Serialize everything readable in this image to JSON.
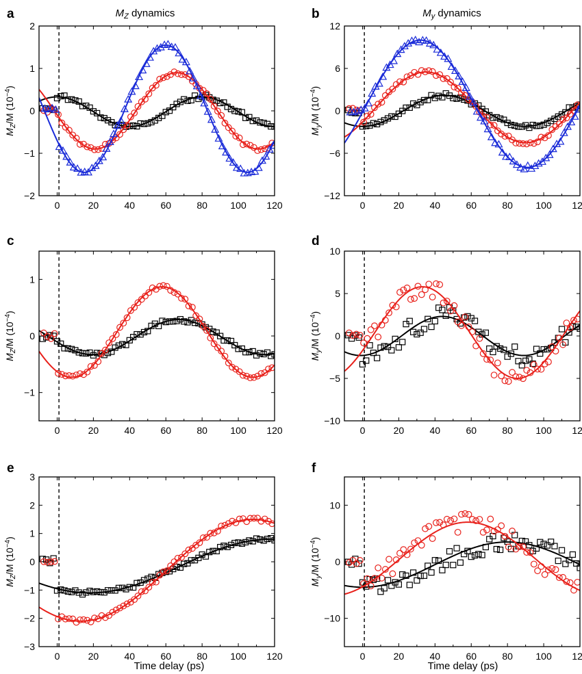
{
  "figure": {
    "column_titles": [
      {
        "symbol": "M",
        "subscript": "Z",
        "rest": " dynamics"
      },
      {
        "symbol": "M",
        "subscript": "y",
        "rest": " dynamics"
      }
    ],
    "x_axis_label": "Time delay (ps)"
  },
  "colors": {
    "black": "#000000",
    "red": "#e8201a",
    "blue": "#1a2bd8"
  },
  "chart_data": [
    {
      "panel": "a",
      "type": "scatter",
      "column": 0,
      "row": 0,
      "ylabel": {
        "main": "M",
        "sub": "Z",
        "rest": "/M (10",
        "exp": "−4",
        "close": ")"
      },
      "xlim": [
        -10,
        120
      ],
      "ylim": [
        -2,
        2
      ],
      "xticks": [
        0,
        20,
        40,
        60,
        80,
        100,
        120
      ],
      "yticks": [
        -2,
        -1,
        0,
        1,
        2
      ],
      "dashed_x": 1,
      "series": [
        {
          "color": "black",
          "marker": "square",
          "fit": {
            "kind": "cosine",
            "offset": -0.02,
            "amp": 0.35,
            "period": 80,
            "peak": 80,
            "t0": -10
          }
        },
        {
          "color": "red",
          "marker": "circle",
          "fit": {
            "kind": "cosine",
            "offset": 0.0,
            "amp": 0.9,
            "period": 90,
            "peak": 66,
            "t0": -10
          }
        },
        {
          "color": "blue",
          "marker": "triangle",
          "fit": {
            "kind": "cosine",
            "offset": 0.05,
            "amp": 1.5,
            "period": 90,
            "peak": 60,
            "t0": -10
          }
        }
      ]
    },
    {
      "panel": "b",
      "type": "scatter",
      "column": 1,
      "row": 0,
      "ylabel": {
        "main": "M",
        "sub": "y",
        "rest": "/M (10",
        "exp": "−4",
        "close": ")"
      },
      "xlim": [
        -10,
        120
      ],
      "ylim": [
        -12,
        12
      ],
      "xticks": [
        0,
        20,
        40,
        60,
        80,
        100,
        120
      ],
      "yticks": [
        -12,
        -6,
        0,
        6,
        12
      ],
      "dashed_x": 1,
      "series": [
        {
          "color": "black",
          "marker": "square",
          "fit": {
            "kind": "cosine",
            "offset": 0.0,
            "amp": 2.2,
            "period": 90,
            "peak": 45,
            "t0": -10
          }
        },
        {
          "color": "red",
          "marker": "circle",
          "fit": {
            "kind": "cosine",
            "offset": 0.5,
            "amp": 5.0,
            "period": 110,
            "peak": 35,
            "t0": -10
          }
        },
        {
          "color": "blue",
          "marker": "triangle",
          "fit": {
            "kind": "cosine",
            "offset": 1.0,
            "amp": 9.0,
            "period": 118,
            "peak": 32,
            "t0": -10
          }
        }
      ]
    },
    {
      "panel": "c",
      "type": "scatter",
      "column": 0,
      "row": 1,
      "ylabel": {
        "main": "M",
        "sub": "Z",
        "rest": "/M (10",
        "exp": "−4",
        "close": ")"
      },
      "xlim": [
        -10,
        120
      ],
      "ylim": [
        -1.5,
        1.5
      ],
      "xticks": [
        0,
        20,
        40,
        60,
        80,
        100,
        120
      ],
      "yticks": [
        -1,
        0,
        1
      ],
      "dashed_x": 1,
      "series": [
        {
          "color": "black",
          "marker": "square",
          "fit": {
            "kind": "cosine",
            "offset": -0.02,
            "amp": 0.31,
            "period": 95,
            "peak": 67,
            "t0": -10
          }
        },
        {
          "color": "red",
          "marker": "circle",
          "fit": {
            "kind": "cosine",
            "offset": 0.07,
            "amp": 0.8,
            "period": 100,
            "peak": 58,
            "t0": -10
          }
        }
      ]
    },
    {
      "panel": "d",
      "type": "scatter",
      "column": 1,
      "row": 1,
      "ylabel": {
        "main": "M",
        "sub": "y",
        "rest": "/M (10",
        "exp": "−4",
        "close": ")"
      },
      "xlim": [
        -10,
        120
      ],
      "ylim": [
        -10,
        10
      ],
      "xticks": [
        0,
        20,
        40,
        60,
        80,
        100,
        120
      ],
      "yticks": [
        -10,
        -5,
        0,
        5,
        10
      ],
      "dashed_x": 1,
      "series": [
        {
          "color": "black",
          "marker": "square",
          "fit": {
            "kind": "cosine",
            "offset": 0.0,
            "amp": 2.3,
            "period": 90,
            "peak": 44,
            "t0": -10
          }
        },
        {
          "color": "red",
          "marker": "circle",
          "fit": {
            "kind": "cosine",
            "offset": 0.4,
            "amp": 5.4,
            "period": 105,
            "peak": 33,
            "t0": -10
          }
        }
      ]
    },
    {
      "panel": "e",
      "type": "scatter",
      "column": 0,
      "row": 2,
      "ylabel": {
        "main": "M",
        "sub": "Z",
        "rest": "/M (10",
        "exp": "−4",
        "close": ")"
      },
      "xlim": [
        -10,
        120
      ],
      "ylim": [
        -3,
        3
      ],
      "xticks": [
        0,
        20,
        40,
        60,
        80,
        100,
        120
      ],
      "yticks": [
        -3,
        -2,
        -1,
        0,
        1,
        2,
        3
      ],
      "dashed_x": 1,
      "series": [
        {
          "color": "black",
          "marker": "square",
          "fit": {
            "kind": "cosine",
            "offset": -0.15,
            "amp": 0.95,
            "period": 200,
            "peak": 118,
            "t0": 3
          }
        },
        {
          "color": "red",
          "marker": "circle",
          "fit": {
            "kind": "cosine",
            "offset": -0.3,
            "amp": 1.8,
            "period": 190,
            "peak": 108,
            "t0": 3
          }
        }
      ]
    },
    {
      "panel": "f",
      "type": "scatter",
      "column": 1,
      "row": 2,
      "ylabel": {
        "main": "M",
        "sub": "y",
        "rest": "/M (10",
        "exp": "−4",
        "close": ")"
      },
      "xlim": [
        -10,
        120
      ],
      "ylim": [
        -15,
        15
      ],
      "xticks": [
        0,
        20,
        40,
        60,
        80,
        100,
        120
      ],
      "yticks": [
        -10,
        0,
        10
      ],
      "dashed_x": 1,
      "series": [
        {
          "color": "black",
          "marker": "square",
          "fit": {
            "kind": "cosine",
            "offset": -0.5,
            "amp": 4.0,
            "period": 160,
            "peak": 80,
            "t0": -10
          }
        },
        {
          "color": "red",
          "marker": "circle",
          "fit": {
            "kind": "cosine",
            "offset": 0.5,
            "amp": 6.5,
            "period": 150,
            "peak": 58,
            "t0": -10
          }
        }
      ]
    }
  ],
  "xlabel": "Time delay (ps)"
}
